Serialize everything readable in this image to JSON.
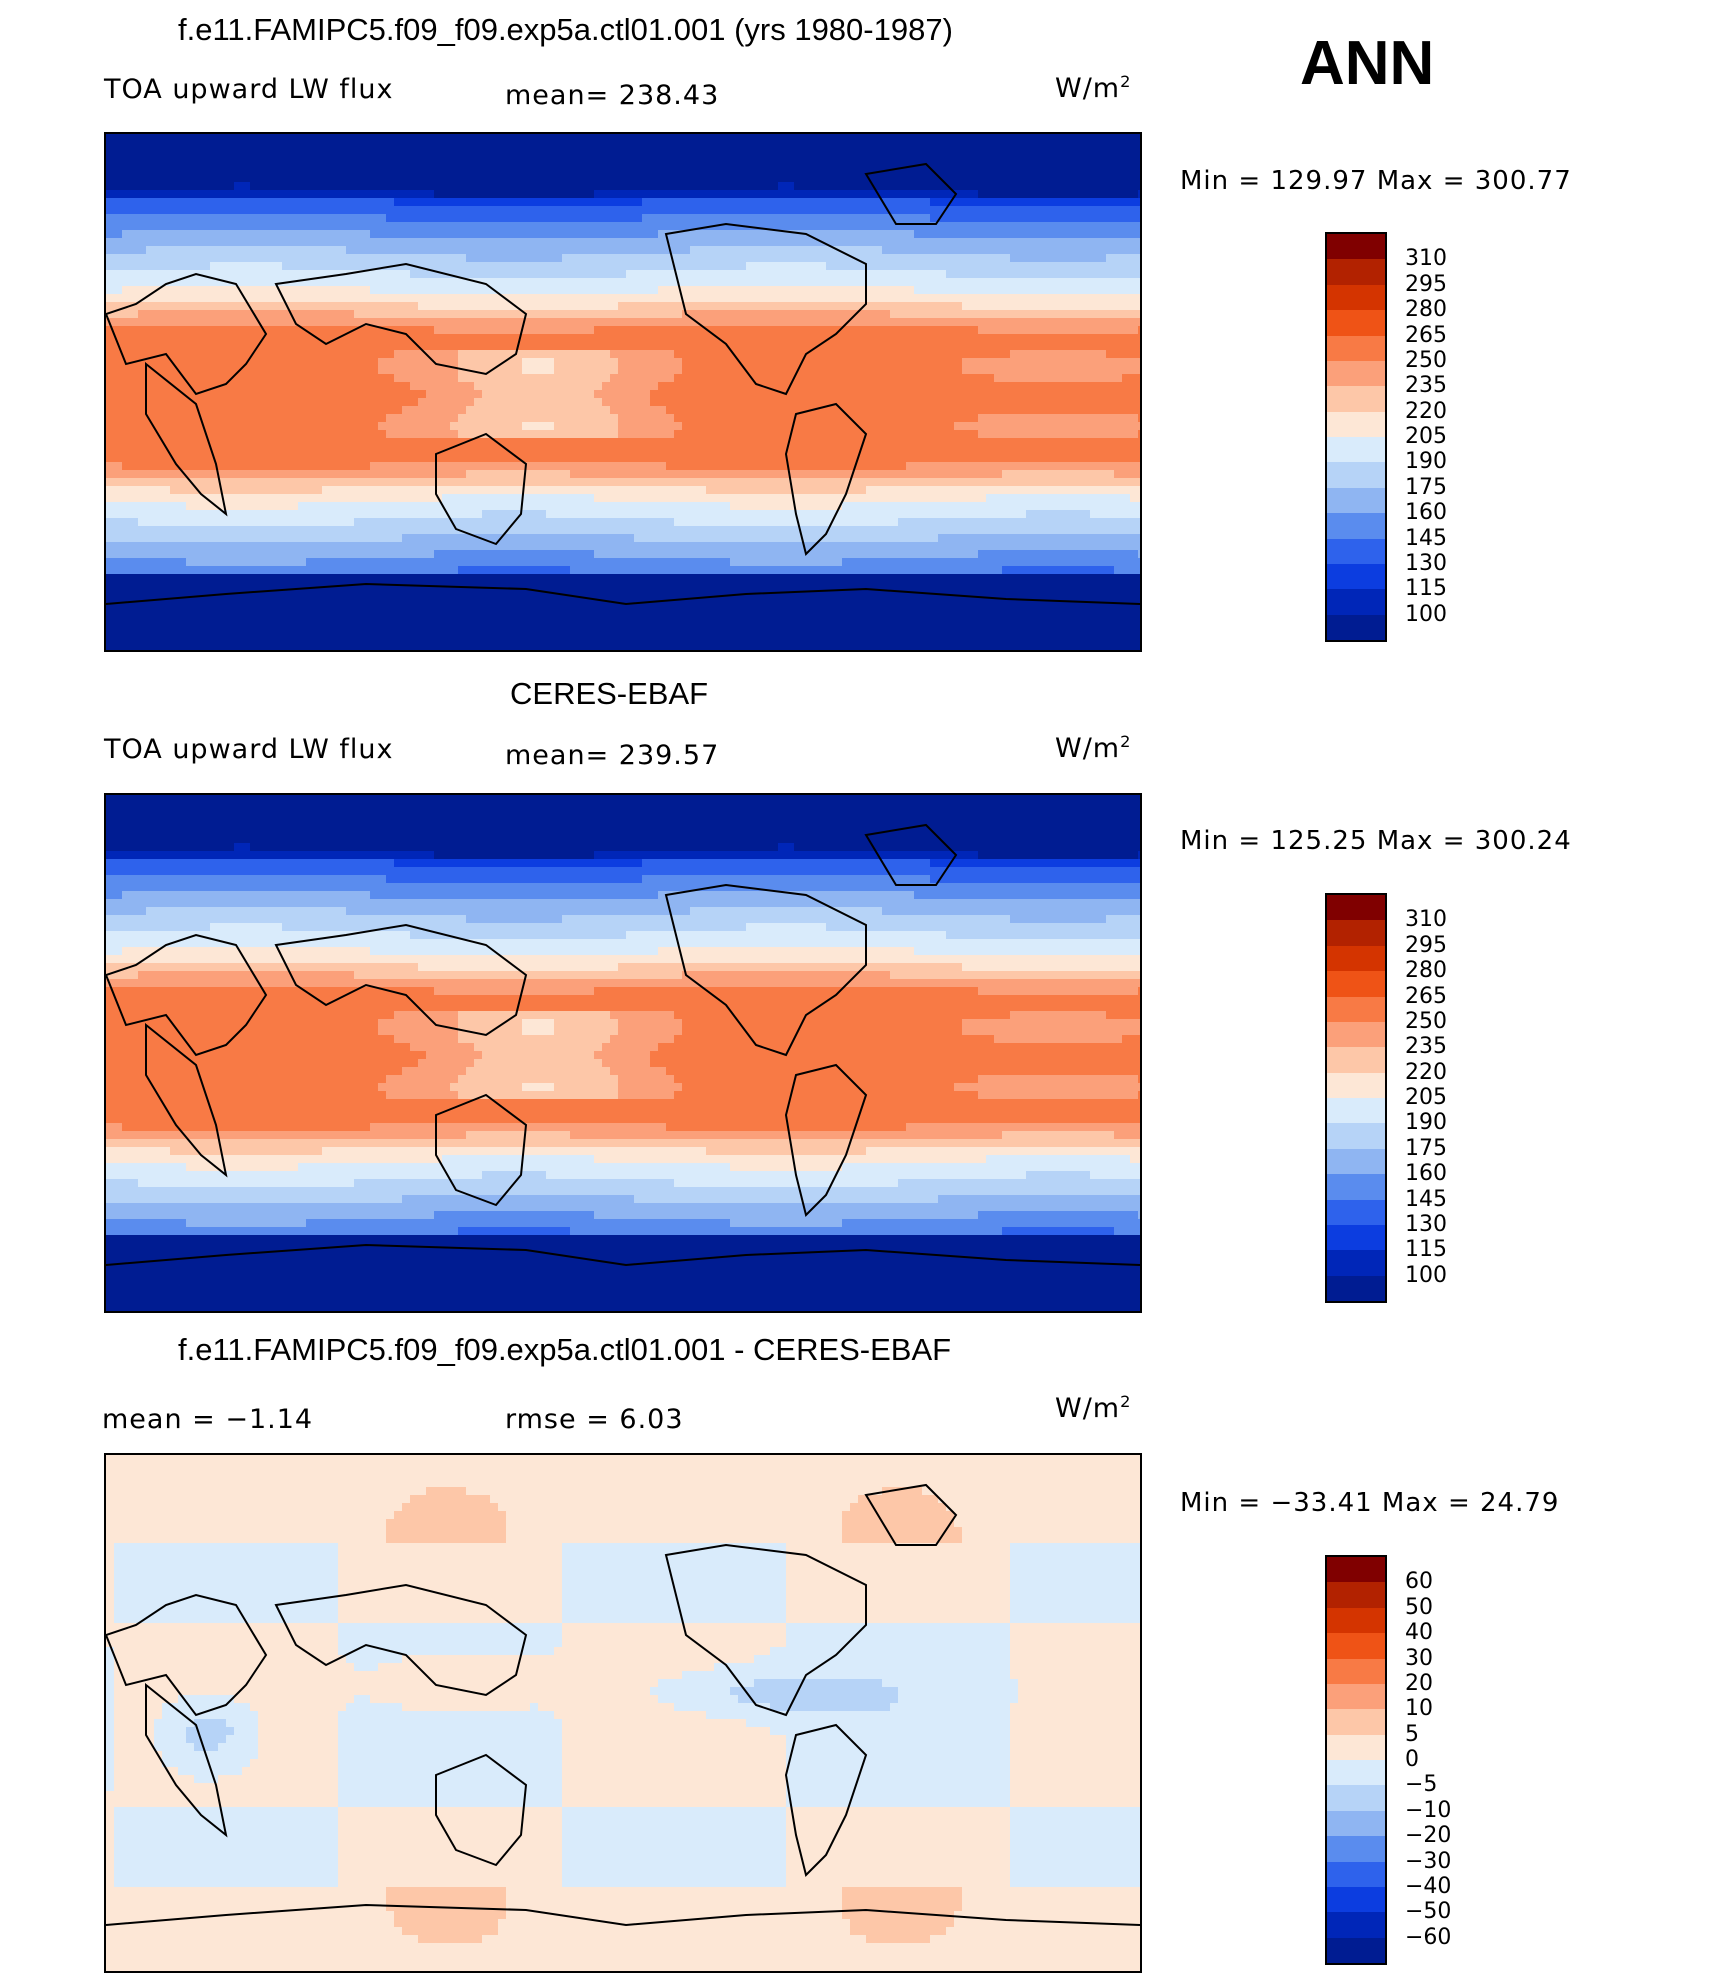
{
  "header": {
    "season": "ANN"
  },
  "panels": [
    {
      "title": "f.e11.FAMIPC5.f09_f09.exp5a.ctl01.001 (yrs 1980-1987)",
      "left_label": "TOA upward LW flux",
      "center_label": "mean=  238.43",
      "units": "W/m",
      "units_exp": "2",
      "minmax": "Min  =  129.97  Max  =  300.77",
      "colorbar_ticks": [
        "310",
        "295",
        "280",
        "265",
        "250",
        "235",
        "220",
        "205",
        "190",
        "175",
        "160",
        "145",
        "130",
        "115",
        "100"
      ],
      "field": "model"
    },
    {
      "title": "CERES-EBAF",
      "left_label": "TOA upward LW flux",
      "center_label": "mean=  239.57",
      "units": "W/m",
      "units_exp": "2",
      "minmax": "Min  =  125.25  Max  =  300.24",
      "colorbar_ticks": [
        "310",
        "295",
        "280",
        "265",
        "250",
        "235",
        "220",
        "205",
        "190",
        "175",
        "160",
        "145",
        "130",
        "115",
        "100"
      ],
      "field": "obs"
    },
    {
      "title": "f.e11.FAMIPC5.f09_f09.exp5a.ctl01.001 - CERES-EBAF",
      "left_label": "mean  =    −1.14",
      "center_label": "rmse  =     6.03",
      "units": "W/m",
      "units_exp": "2",
      "minmax": "Min  =  −33.41  Max  =    24.79",
      "colorbar_ticks": [
        "60",
        "50",
        "40",
        "30",
        "20",
        "10",
        "5",
        "0",
        "−5",
        "−10",
        "−20",
        "−30",
        "−40",
        "−50",
        "−60"
      ],
      "field": "diff"
    }
  ],
  "colors": {
    "sequential_palette": [
      "#800000",
      "#b22200",
      "#d43400",
      "#ef5316",
      "#f87a45",
      "#fba07a",
      "#fdc7a8",
      "#fde7d6",
      "#d9ebfb",
      "#b6d3f7",
      "#8fb5f2",
      "#5a8cee",
      "#2e62ec",
      "#0c3de0",
      "#0026b8",
      "#001c92"
    ],
    "diverging_palette": [
      "#800000",
      "#b22200",
      "#d43400",
      "#ef5316",
      "#f87a45",
      "#fba07a",
      "#fdc7a8",
      "#fde7d6",
      "#d9ebfb",
      "#b6d3f7",
      "#8fb5f2",
      "#5a8cee",
      "#2e62ec",
      "#0c3de0",
      "#0026b8",
      "#001c92"
    ]
  }
}
